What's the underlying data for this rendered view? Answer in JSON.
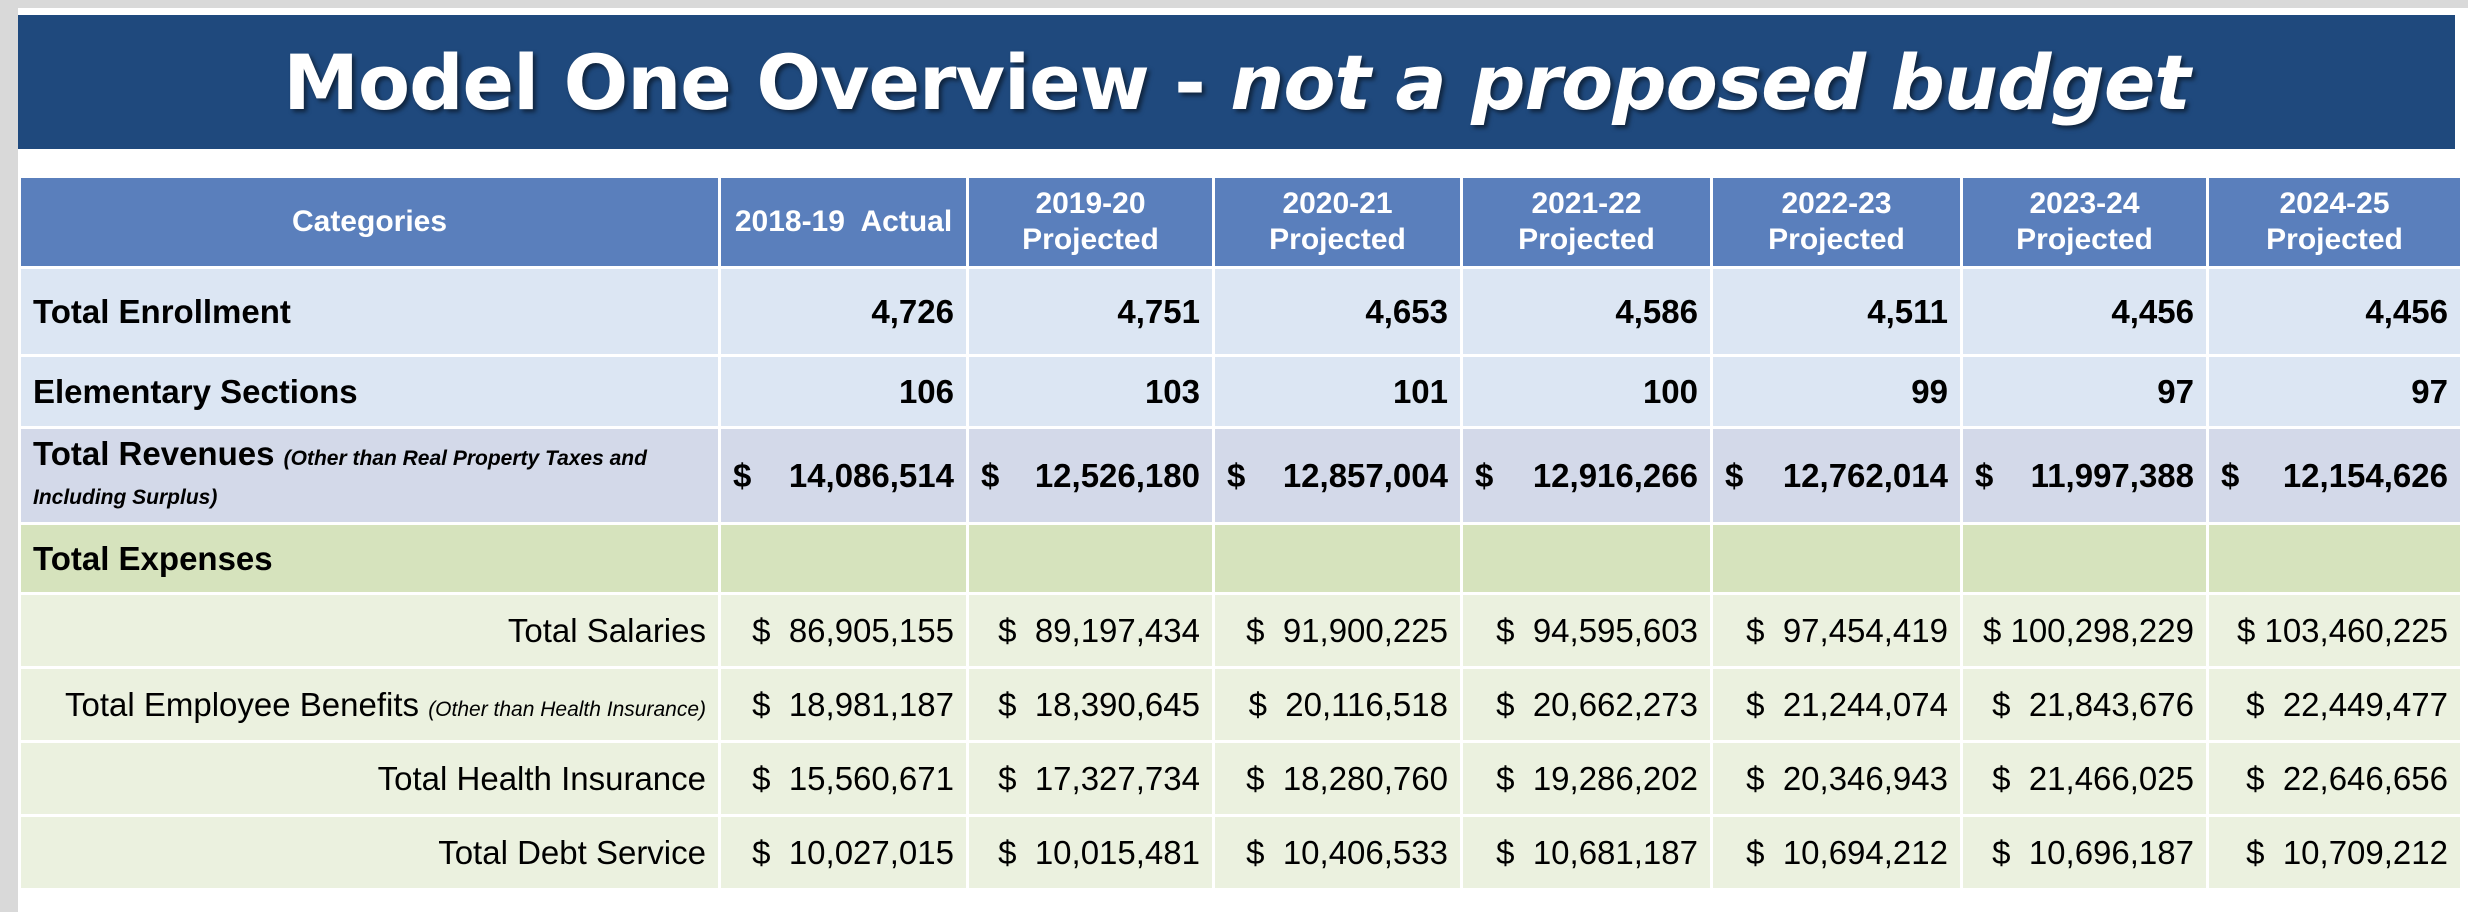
{
  "title": {
    "main": "Model One Overview - ",
    "italic": "not a proposed budget"
  },
  "colors": {
    "banner": "#1f497d",
    "header": "#5a7fbc",
    "row_blue": "#dce6f3",
    "row_revenue": "#d3d9e9",
    "row_expenses_header": "#d6e3bd",
    "row_expense_detail": "#ebf1df"
  },
  "table": {
    "header": {
      "categories": "Categories",
      "actual": "2018-19  Actual",
      "years": [
        {
          "year": "2019-20",
          "label": "Projected"
        },
        {
          "year": "2020-21",
          "label": "Projected"
        },
        {
          "year": "2021-22",
          "label": "Projected"
        },
        {
          "year": "2022-23",
          "label": "Projected"
        },
        {
          "year": "2023-24",
          "label": "Projected"
        },
        {
          "year": "2024-25",
          "label": "Projected"
        }
      ]
    },
    "enrollment": {
      "label": "Total Enrollment",
      "values": [
        "4,726",
        "4,751",
        "4,653",
        "4,586",
        "4,511",
        "4,456",
        "4,456"
      ]
    },
    "sections": {
      "label": "Elementary Sections",
      "values": [
        "106",
        "103",
        "101",
        "100",
        "99",
        "97",
        "97"
      ]
    },
    "revenues": {
      "label": "Total Revenues",
      "note": "(Other than Real Property Taxes and Including Surplus)",
      "currency": "$",
      "values": [
        "14,086,514",
        "12,526,180",
        "12,857,004",
        "12,916,266",
        "12,762,014",
        "11,997,388",
        "12,154,626"
      ]
    },
    "expenses_header": {
      "label": "Total Expenses"
    },
    "salaries": {
      "label": "Total Salaries",
      "values": [
        "$  86,905,155",
        "$  89,197,434",
        "$  91,900,225",
        "$  94,595,603",
        "$  97,454,419",
        "$ 100,298,229",
        "$ 103,460,225"
      ]
    },
    "benefits": {
      "label": "Total Employee Benefits",
      "note": "(Other than Health Insurance)",
      "values": [
        "$  18,981,187",
        "$  18,390,645",
        "$  20,116,518",
        "$  20,662,273",
        "$  21,244,074",
        "$  21,843,676",
        "$  22,449,477"
      ]
    },
    "health": {
      "label": "Total Health Insurance",
      "values": [
        "$  15,560,671",
        "$  17,327,734",
        "$  18,280,760",
        "$  19,286,202",
        "$  20,346,943",
        "$  21,466,025",
        "$  22,646,656"
      ]
    },
    "debt": {
      "label": "Total Debt Service",
      "values": [
        "$  10,027,015",
        "$  10,015,481",
        "$  10,406,533",
        "$  10,681,187",
        "$  10,694,212",
        "$  10,696,187",
        "$  10,709,212"
      ]
    }
  }
}
